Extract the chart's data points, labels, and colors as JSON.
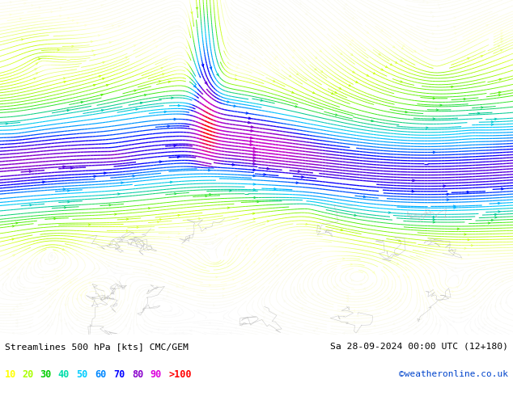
{
  "title_left": "Streamlines 500 hPa [kts] CMC/GEM",
  "title_right": "Sa 28-09-2024 00:00 UTC (12+180)",
  "credit": "©weatheronline.co.uk",
  "legend_values": [
    "10",
    "20",
    "30",
    "40",
    "50",
    "60",
    "70",
    "80",
    "90",
    ">100"
  ],
  "legend_colors": [
    "#ffff00",
    "#aaff00",
    "#00cc00",
    "#00ddaa",
    "#00ccff",
    "#0088ff",
    "#0000ff",
    "#8800cc",
    "#dd00dd",
    "#ff0000"
  ],
  "bg_color": "#ffffff",
  "figsize": [
    6.34,
    4.9
  ],
  "dpi": 100,
  "seed": 42,
  "colormap": [
    [
      0.0,
      "#f8f8f8"
    ],
    [
      0.05,
      "#ffffcc"
    ],
    [
      0.12,
      "#ccff00"
    ],
    [
      0.22,
      "#44ee00"
    ],
    [
      0.3,
      "#00cc88"
    ],
    [
      0.4,
      "#00ccff"
    ],
    [
      0.5,
      "#0088ff"
    ],
    [
      0.6,
      "#0000ff"
    ],
    [
      0.72,
      "#8800cc"
    ],
    [
      0.85,
      "#cc00cc"
    ],
    [
      1.0,
      "#ff0000"
    ]
  ]
}
